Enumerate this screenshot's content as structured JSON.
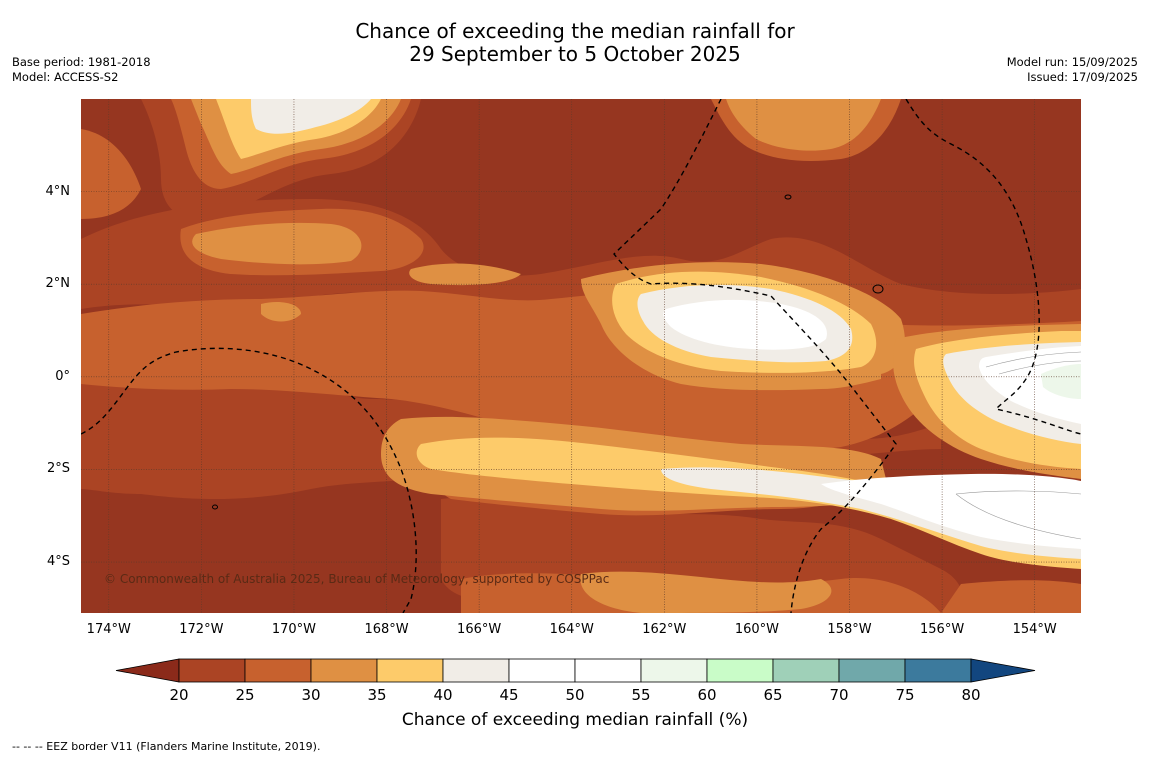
{
  "title": {
    "line1": "Chance of exceeding the median rainfall for",
    "line2": "29 September to 5 October 2025"
  },
  "meta_left": {
    "base_period": "Base period: 1981-2018",
    "model": "Model: ACCESS-S2"
  },
  "meta_right": {
    "model_run": "Model run: 15/09/2025",
    "issued": "Issued: 17/09/2025"
  },
  "map": {
    "copyright": "© Commonwealth of Australia 2025, Bureau of Meteorology, supported by COSPPac",
    "lon_labels": [
      "174°W",
      "172°W",
      "170°W",
      "168°W",
      "166°W",
      "164°W",
      "162°W",
      "160°W",
      "158°W",
      "156°W",
      "154°W"
    ],
    "lat_labels": [
      "4°N",
      "2°N",
      "0°",
      "2°S",
      "4°S"
    ],
    "lon_range": [
      -174.6,
      -153.0
    ],
    "lat_range": [
      -5.1,
      6.0
    ]
  },
  "colorbar": {
    "label": "Chance of exceeding median rainfall (%)",
    "ticks": [
      "20",
      "25",
      "30",
      "35",
      "40",
      "45",
      "50",
      "55",
      "60",
      "65",
      "70",
      "75",
      "80"
    ],
    "under_color": "#8b2a1a",
    "over_color": "#12467f",
    "colors": [
      "#ab4424",
      "#c7612e",
      "#df9043",
      "#fdcb6a",
      "#f1ede7",
      "#ffffff",
      "#ffffff",
      "#edf7ea",
      "#c9fcc8",
      "#9fd0b8",
      "#70a8aa",
      "#3c7a9d"
    ]
  },
  "footer": "--  --  -- EEZ border V11 (Flanders Marine Institute, 2019)."
}
